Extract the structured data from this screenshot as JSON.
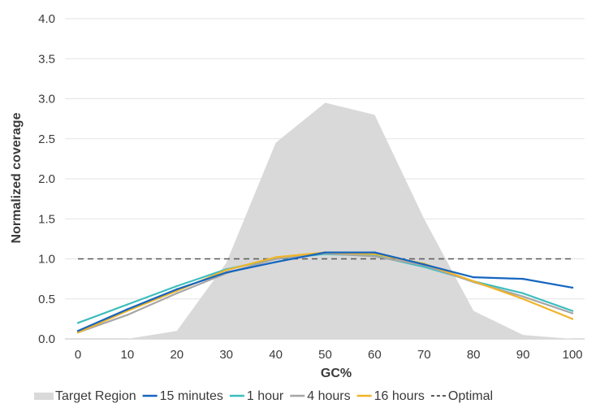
{
  "chart_data": {
    "type": "line",
    "title": "",
    "xlabel": "GC%",
    "ylabel": "Normalized coverage",
    "x": [
      0,
      10,
      20,
      30,
      40,
      50,
      60,
      70,
      80,
      90,
      100
    ],
    "xlim": [
      0,
      100
    ],
    "ylim": [
      0,
      4
    ],
    "x_ticks": [
      "0",
      "10",
      "20",
      "30",
      "40",
      "50",
      "60",
      "70",
      "80",
      "90",
      "100"
    ],
    "y_ticks": [
      "0.0",
      "0.5",
      "1.0",
      "1.5",
      "2.0",
      "2.5",
      "3.0",
      "3.5",
      "4.0"
    ],
    "grid": "horizontal",
    "legend_position": "bottom",
    "area": {
      "name": "Target Region",
      "color": "#d9d9d9",
      "values": [
        0.0,
        0.0,
        0.1,
        0.95,
        2.45,
        2.95,
        2.8,
        1.5,
        0.35,
        0.05,
        0.0
      ]
    },
    "series": [
      {
        "name": "15 minutes",
        "color": "#1565c0",
        "values": [
          0.1,
          0.37,
          0.62,
          0.83,
          0.96,
          1.08,
          1.08,
          0.93,
          0.77,
          0.75,
          0.64
        ]
      },
      {
        "name": "1 hour",
        "color": "#3dbdbd",
        "values": [
          0.2,
          0.43,
          0.66,
          0.87,
          1.0,
          1.06,
          1.04,
          0.9,
          0.72,
          0.57,
          0.35
        ]
      },
      {
        "name": "4 hours",
        "color": "#a6a6a6",
        "values": [
          0.08,
          0.3,
          0.57,
          0.82,
          1.0,
          1.07,
          1.03,
          0.92,
          0.71,
          0.53,
          0.32
        ]
      },
      {
        "name": "16 hours",
        "color": "#f0b428",
        "values": [
          0.08,
          0.35,
          0.6,
          0.86,
          1.02,
          1.08,
          1.06,
          0.94,
          0.72,
          0.5,
          0.25
        ]
      }
    ],
    "reference_line": {
      "name": "Optimal",
      "value": 1.0,
      "color": "#595959"
    }
  }
}
